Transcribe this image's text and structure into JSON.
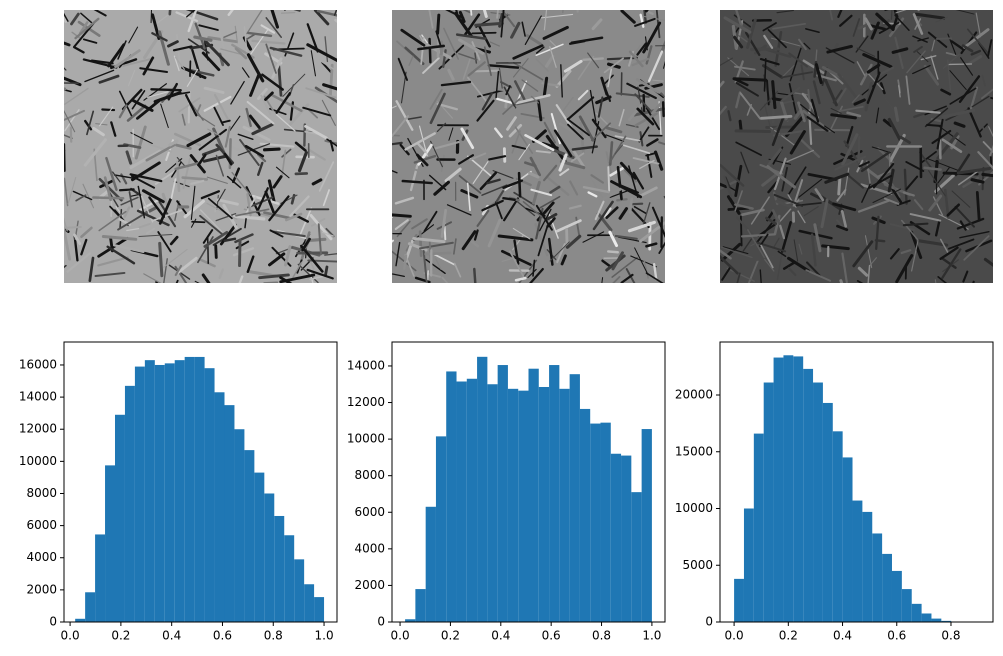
{
  "chart_data": [
    {
      "type": "histogram",
      "color": "#1f77b4",
      "bins": [
        0.02,
        0.0592,
        0.0984,
        0.1376,
        0.1768,
        0.216,
        0.2552,
        0.2944,
        0.3336,
        0.3728,
        0.412,
        0.4512,
        0.4904,
        0.5296,
        0.5688,
        0.608,
        0.6472,
        0.6864,
        0.7256,
        0.7648,
        0.804,
        0.8432,
        0.8824,
        0.9216,
        0.9608,
        1.0
      ],
      "values": [
        200,
        1850,
        5450,
        9750,
        12900,
        14700,
        15900,
        16300,
        16000,
        16100,
        16300,
        16500,
        16500,
        15800,
        14300,
        13500,
        12000,
        10700,
        9300,
        8000,
        6600,
        5400,
        3900,
        2350,
        1550
      ],
      "xlim": [
        -0.024,
        1.051
      ],
      "ylim": [
        0,
        17430
      ],
      "xticks": [
        {
          "value": 0,
          "label": "0.0"
        },
        {
          "value": 0.2,
          "label": "0.2"
        },
        {
          "value": 0.4,
          "label": "0.4"
        },
        {
          "value": 0.6,
          "label": "0.6"
        },
        {
          "value": 0.8,
          "label": "0.8"
        },
        {
          "value": 1,
          "label": "1.0"
        }
      ],
      "yticks": [
        0,
        2000,
        4000,
        6000,
        8000,
        10000,
        12000,
        14000,
        16000
      ]
    },
    {
      "type": "histogram",
      "color": "#1f77b4",
      "bins": [
        0.02,
        0.0608,
        0.1017,
        0.1425,
        0.1833,
        0.2242,
        0.265,
        0.3058,
        0.3467,
        0.3875,
        0.4283,
        0.4692,
        0.51,
        0.5508,
        0.5917,
        0.6325,
        0.6733,
        0.7142,
        0.755,
        0.7958,
        0.8367,
        0.8775,
        0.9183,
        0.9592,
        1.0
      ],
      "values": [
        150,
        1800,
        6300,
        10150,
        13700,
        13150,
        13300,
        14500,
        13000,
        14050,
        12750,
        12650,
        13850,
        12850,
        14050,
        12750,
        13550,
        11650,
        10850,
        10900,
        9200,
        9100,
        7100,
        10550
      ],
      "xlim": [
        -0.032,
        1.052
      ],
      "ylim": [
        0,
        15310
      ],
      "xticks": [
        {
          "value": 0,
          "label": "0.0"
        },
        {
          "value": 0.2,
          "label": "0.2"
        },
        {
          "value": 0.4,
          "label": "0.4"
        },
        {
          "value": 0.6,
          "label": "0.6"
        },
        {
          "value": 0.8,
          "label": "0.8"
        },
        {
          "value": 1,
          "label": "1.0"
        }
      ],
      "yticks": [
        0,
        2000,
        4000,
        6000,
        8000,
        10000,
        12000,
        14000
      ]
    },
    {
      "type": "histogram",
      "color": "#1f77b4",
      "bins": [
        0,
        0.0364,
        0.0728,
        0.1092,
        0.1456,
        0.182,
        0.2184,
        0.2548,
        0.2912,
        0.3276,
        0.364,
        0.4004,
        0.4368,
        0.4732,
        0.5096,
        0.546,
        0.5824,
        0.6188,
        0.6552,
        0.6916,
        0.728,
        0.7644,
        0.8008,
        0.8372,
        0.8736,
        0.91
      ],
      "values": [
        3800,
        10000,
        16600,
        21100,
        23300,
        23500,
        23400,
        22300,
        21100,
        19300,
        16800,
        14500,
        10700,
        9700,
        7800,
        6000,
        4500,
        2900,
        1600,
        750,
        300,
        100,
        30,
        10,
        5
      ],
      "xlim": [
        -0.052,
        0.955
      ],
      "ylim": [
        0,
        24670
      ],
      "xticks": [
        {
          "value": 0,
          "label": "0.0"
        },
        {
          "value": 0.2,
          "label": "0.2"
        },
        {
          "value": 0.4,
          "label": "0.4"
        },
        {
          "value": 0.6,
          "label": "0.6"
        },
        {
          "value": 0.8,
          "label": "0.8"
        }
      ],
      "yticks": [
        0,
        5000,
        10000,
        15000,
        20000
      ]
    }
  ]
}
